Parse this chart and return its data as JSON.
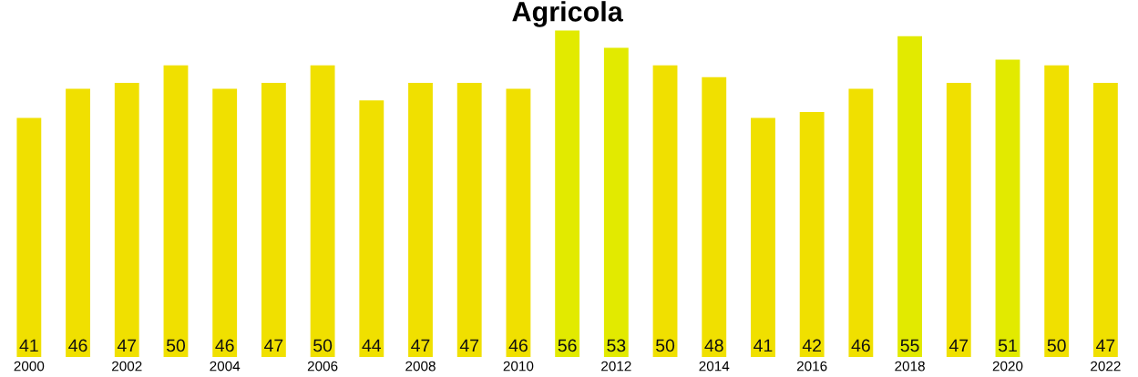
{
  "chart_data": {
    "type": "bar",
    "title": "Agricola",
    "categories": [
      "2000",
      null,
      "2002",
      null,
      "2004",
      null,
      "2006",
      null,
      "2008",
      null,
      "2010",
      null,
      "2012",
      null,
      "2014",
      null,
      "2016",
      null,
      "2018",
      null,
      "2020",
      null,
      "2022"
    ],
    "values": [
      41,
      46,
      47,
      50,
      46,
      47,
      50,
      44,
      47,
      47,
      46,
      56,
      53,
      50,
      48,
      41,
      42,
      46,
      55,
      47,
      51,
      50,
      47
    ],
    "colors": [
      "#f0e000",
      "#f0e000",
      "#f0e000",
      "#f0e000",
      "#f0e000",
      "#f0e000",
      "#f0e000",
      "#f0e000",
      "#f0e000",
      "#f0e000",
      "#f0e000",
      "#e2ea00",
      "#e2ea00",
      "#f0e000",
      "#f0e000",
      "#f0e000",
      "#f0e000",
      "#f0e000",
      "#e2ea00",
      "#f0e000",
      "#e2ea00",
      "#f0e000",
      "#f0e000"
    ],
    "data_labels": true,
    "grid": false,
    "legend": false
  }
}
